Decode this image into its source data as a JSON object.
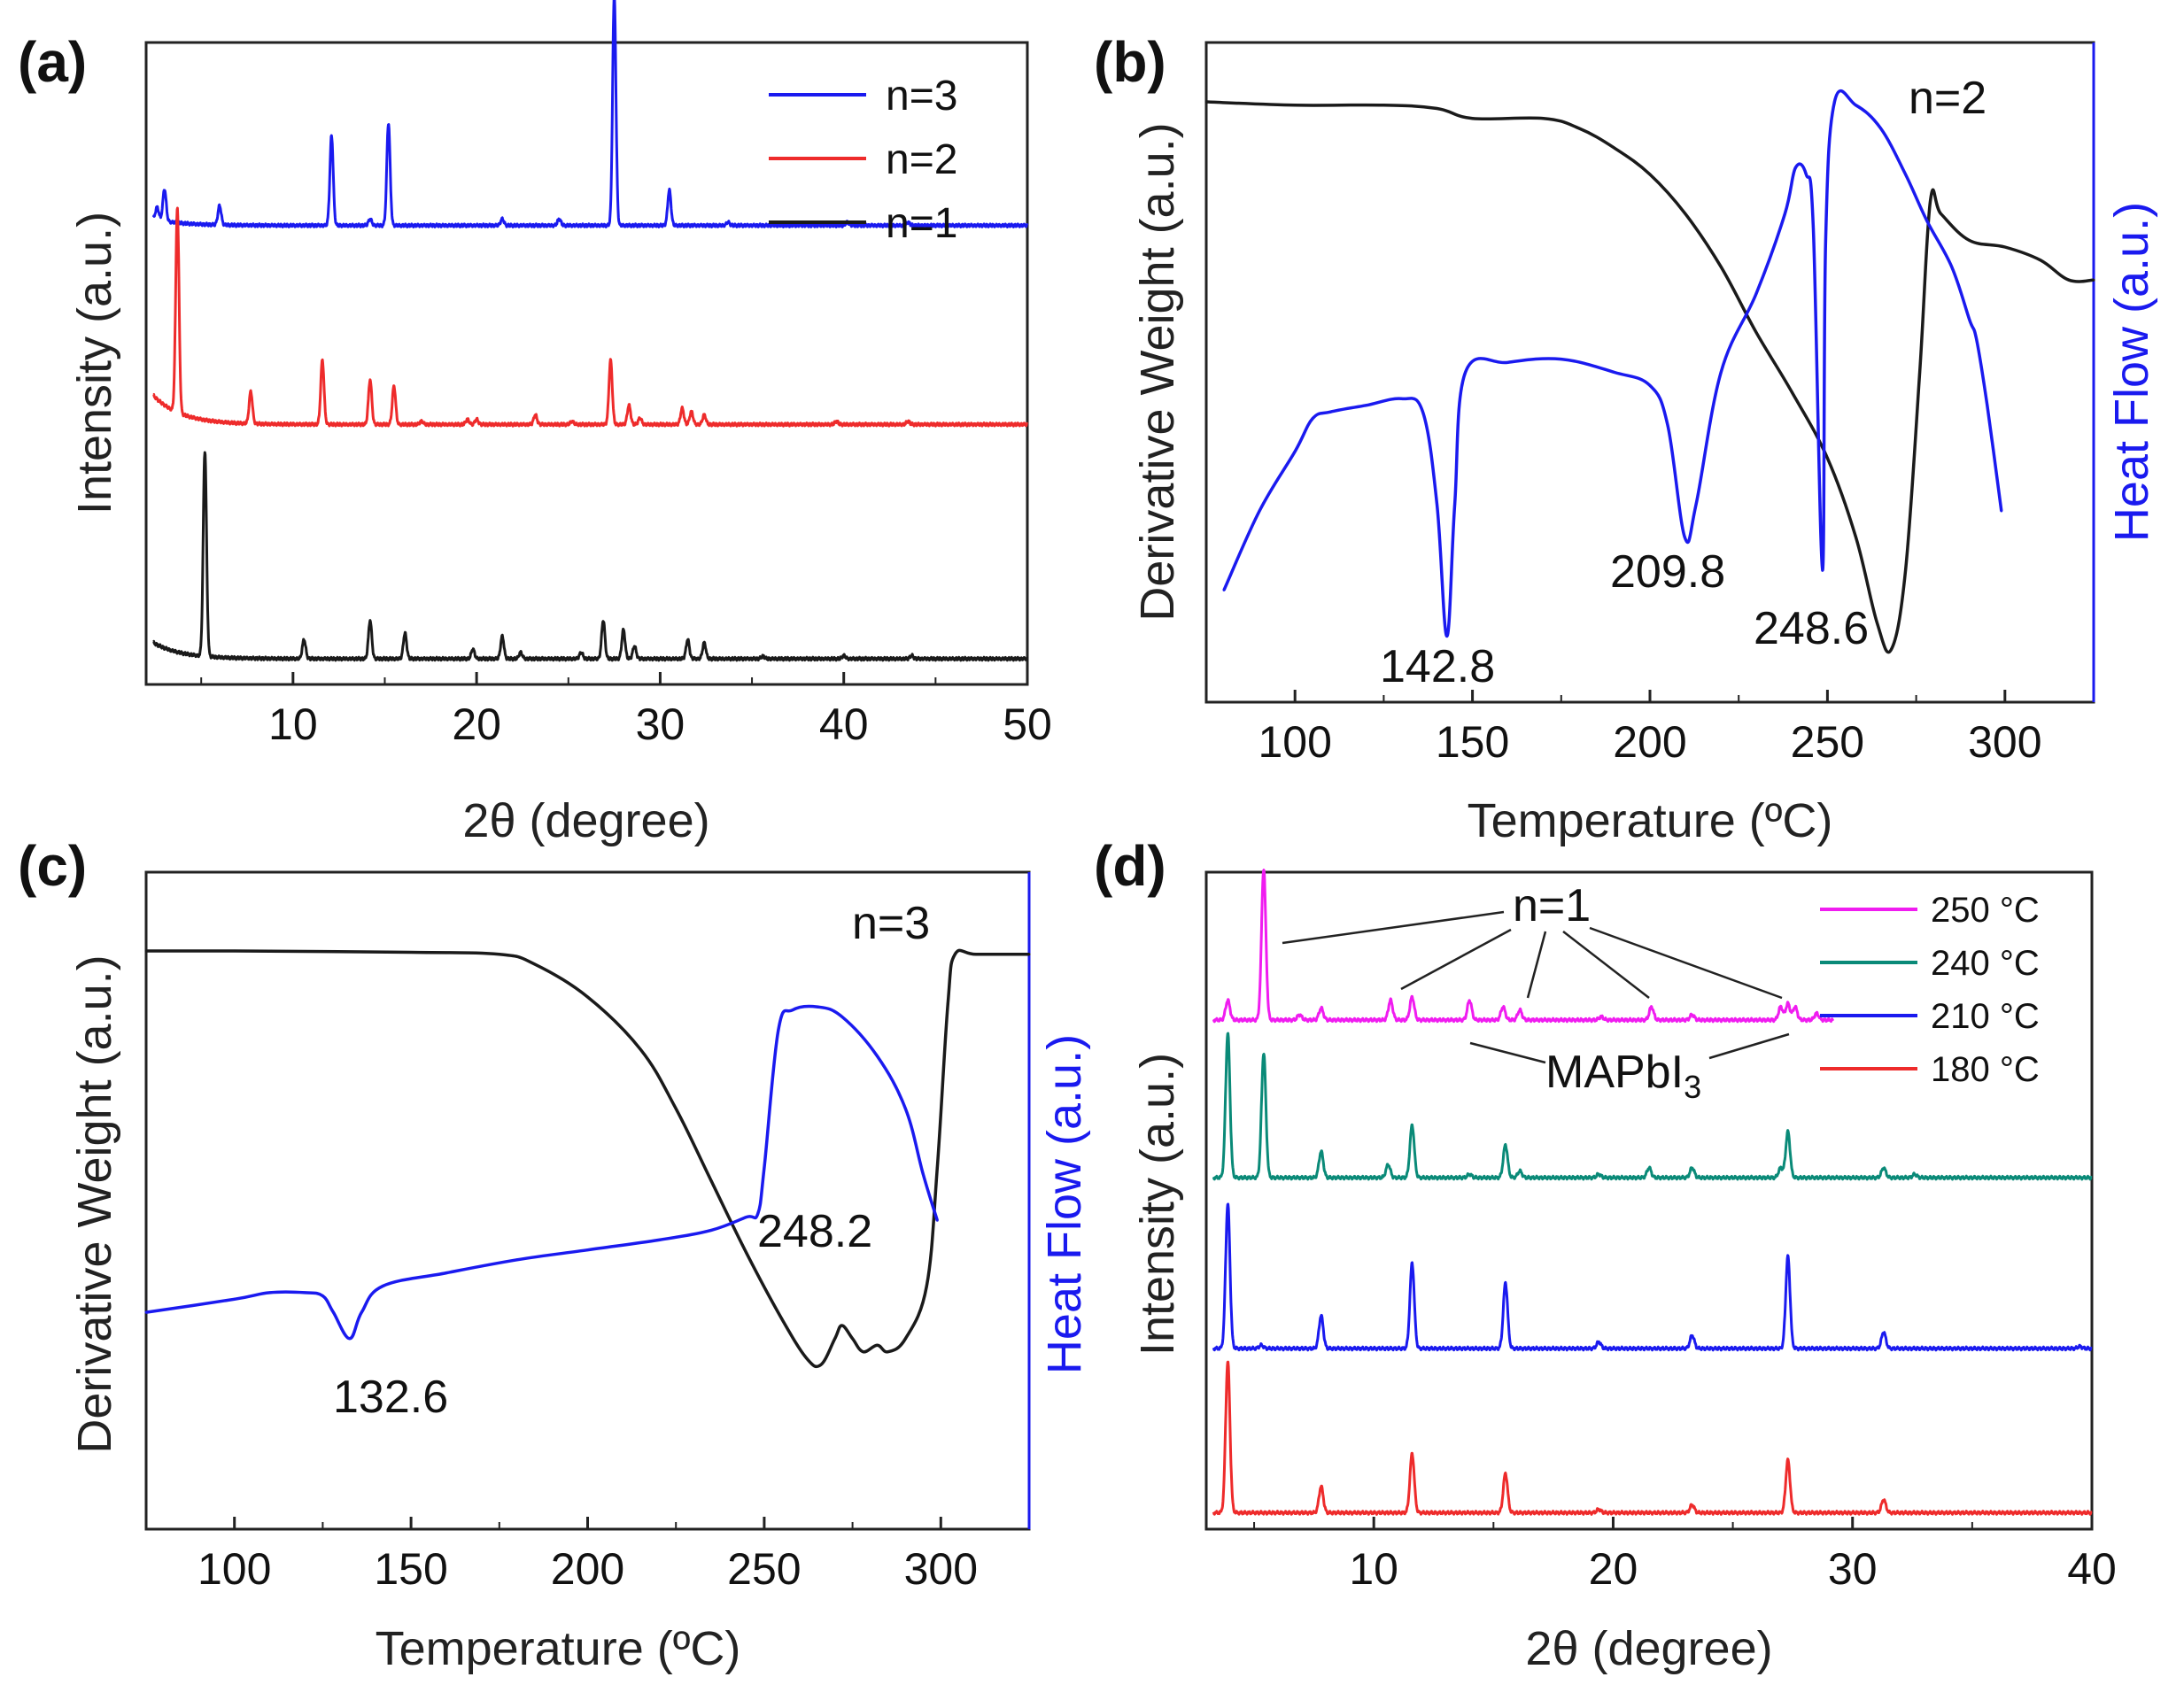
{
  "colors": {
    "black": "#1a1a1a",
    "red": "#ee2b2b",
    "blue": "#1a1aef",
    "teal": "#0a8a78",
    "magenta": "#f01cf0"
  },
  "chart_data": [
    {
      "id": "a",
      "panel_label": "(a)",
      "type": "line",
      "title": "",
      "xlabel": "2θ (degree)",
      "ylabel": "Intensity (a.u.)",
      "xlim": [
        2,
        50
      ],
      "xticks": [
        10,
        20,
        30,
        40,
        50
      ],
      "legend": [
        "n=3",
        "n=2",
        "n=1"
      ],
      "legend_position": "top-right",
      "series": [
        {
          "name": "n=3",
          "color": "blue",
          "baseline": 0.715,
          "start": 0.725,
          "peaks": [
            [
              2.6,
              0.02
            ],
            [
              3.0,
              0.05
            ],
            [
              6.0,
              0.03
            ],
            [
              12.1,
              0.14
            ],
            [
              14.2,
              0.01
            ],
            [
              15.2,
              0.16
            ],
            [
              21.4,
              0.01
            ],
            [
              24.5,
              0.01
            ],
            [
              27.5,
              0.36
            ],
            [
              30.5,
              0.055
            ],
            [
              33.7,
              0.005
            ],
            [
              40.2,
              0.005
            ],
            [
              43.5,
              0.005
            ]
          ]
        },
        {
          "name": "n=2",
          "color": "red",
          "baseline": 0.405,
          "start": 0.45,
          "peaks": [
            [
              3.7,
              0.32
            ],
            [
              7.7,
              0.05
            ],
            [
              11.6,
              0.1
            ],
            [
              14.2,
              0.07
            ],
            [
              15.5,
              0.06
            ],
            [
              17.0,
              0.005
            ],
            [
              19.5,
              0.008
            ],
            [
              20.0,
              0.008
            ],
            [
              23.2,
              0.015
            ],
            [
              25.2,
              0.005
            ],
            [
              27.3,
              0.1
            ],
            [
              28.3,
              0.03
            ],
            [
              28.9,
              0.01
            ],
            [
              31.2,
              0.025
            ],
            [
              31.7,
              0.02
            ],
            [
              32.4,
              0.015
            ],
            [
              39.6,
              0.005
            ],
            [
              43.5,
              0.005
            ]
          ]
        },
        {
          "name": "n=1",
          "color": "black",
          "baseline": 0.04,
          "start": 0.065,
          "peaks": [
            [
              5.2,
              0.32
            ],
            [
              10.6,
              0.03
            ],
            [
              14.2,
              0.06
            ],
            [
              16.1,
              0.04
            ],
            [
              19.8,
              0.015
            ],
            [
              21.4,
              0.035
            ],
            [
              22.4,
              0.01
            ],
            [
              25.7,
              0.01
            ],
            [
              26.9,
              0.06
            ],
            [
              28.0,
              0.045
            ],
            [
              28.6,
              0.02
            ],
            [
              31.5,
              0.03
            ],
            [
              32.4,
              0.025
            ],
            [
              35.6,
              0.004
            ],
            [
              40.0,
              0.005
            ],
            [
              43.7,
              0.005
            ]
          ]
        }
      ]
    },
    {
      "id": "b",
      "panel_label": "(b)",
      "type": "line",
      "title": "n=2",
      "xlabel": "Temperature (ºC)",
      "ylabel": "Derivative Weight (a.u.)",
      "y2label": "Heat Flow (a.u.)",
      "xlim": [
        75,
        325
      ],
      "xticks": [
        100,
        150,
        200,
        250,
        300
      ],
      "annotations": [
        "142.8",
        "209.8",
        "248.6"
      ],
      "series": [
        {
          "name": "Derivative Weight",
          "color": "black",
          "axis": "left",
          "points": [
            [
              75,
              0.91
            ],
            [
              100,
              0.905
            ],
            [
              125,
              0.905
            ],
            [
              140,
              0.9
            ],
            [
              150,
              0.885
            ],
            [
              170,
              0.885
            ],
            [
              180,
              0.87
            ],
            [
              190,
              0.84
            ],
            [
              200,
              0.8
            ],
            [
              210,
              0.74
            ],
            [
              220,
              0.66
            ],
            [
              230,
              0.56
            ],
            [
              240,
              0.47
            ],
            [
              250,
              0.37
            ],
            [
              258,
              0.25
            ],
            [
              264,
              0.12
            ],
            [
              268,
              0.08
            ],
            [
              272,
              0.2
            ],
            [
              276,
              0.5
            ],
            [
              279,
              0.76
            ],
            [
              282,
              0.74
            ],
            [
              290,
              0.7
            ],
            [
              300,
              0.69
            ],
            [
              310,
              0.67
            ],
            [
              318,
              0.64
            ],
            [
              325,
              0.64
            ]
          ]
        },
        {
          "name": "Heat Flow",
          "color": "blue",
          "axis": "right",
          "points": [
            [
              80,
              0.17
            ],
            [
              90,
              0.29
            ],
            [
              100,
              0.38
            ],
            [
              105,
              0.43
            ],
            [
              110,
              0.44
            ],
            [
              120,
              0.45
            ],
            [
              130,
              0.46
            ],
            [
              136,
              0.44
            ],
            [
              140,
              0.3
            ],
            [
              142.8,
              0.1
            ],
            [
              145,
              0.3
            ],
            [
              148,
              0.5
            ],
            [
              160,
              0.515
            ],
            [
              175,
              0.52
            ],
            [
              190,
              0.5
            ],
            [
              200,
              0.48
            ],
            [
              205,
              0.42
            ],
            [
              209.8,
              0.25
            ],
            [
              213,
              0.3
            ],
            [
              220,
              0.5
            ],
            [
              230,
              0.62
            ],
            [
              238,
              0.74
            ],
            [
              241,
              0.81
            ],
            [
              244,
              0.8
            ],
            [
              246,
              0.72
            ],
            [
              248.6,
              0.2
            ],
            [
              249.5,
              0.7
            ],
            [
              252,
              0.91
            ],
            [
              258,
              0.905
            ],
            [
              265,
              0.87
            ],
            [
              272,
              0.8
            ],
            [
              278,
              0.73
            ],
            [
              285,
              0.66
            ],
            [
              290,
              0.58
            ],
            [
              292,
              0.55
            ],
            [
              295,
              0.45
            ],
            [
              299,
              0.29
            ]
          ]
        }
      ]
    },
    {
      "id": "c",
      "panel_label": "(c)",
      "type": "line",
      "title": "n=3",
      "xlabel": "Temperature  (ºC)",
      "ylabel": "Derivative Weight (a.u.)",
      "y2label": "Heat Flow (a.u.)",
      "xlim": [
        75,
        325
      ],
      "xticks": [
        100,
        150,
        200,
        250,
        300
      ],
      "annotations": [
        "248.2",
        "132.6"
      ],
      "series": [
        {
          "name": "Derivative Weight",
          "color": "black",
          "axis": "left",
          "points": [
            [
              75,
              0.88
            ],
            [
              100,
              0.88
            ],
            [
              150,
              0.878
            ],
            [
              175,
              0.875
            ],
            [
              185,
              0.86
            ],
            [
              200,
              0.81
            ],
            [
              215,
              0.73
            ],
            [
              225,
              0.64
            ],
            [
              235,
              0.53
            ],
            [
              245,
              0.42
            ],
            [
              255,
              0.32
            ],
            [
              262,
              0.26
            ],
            [
              266,
              0.25
            ],
            [
              270,
              0.29
            ],
            [
              272,
              0.31
            ],
            [
              275,
              0.29
            ],
            [
              278,
              0.27
            ],
            [
              282,
              0.28
            ],
            [
              285,
              0.27
            ],
            [
              290,
              0.29
            ],
            [
              296,
              0.37
            ],
            [
              299,
              0.55
            ],
            [
              302,
              0.8
            ],
            [
              304,
              0.875
            ],
            [
              310,
              0.875
            ],
            [
              325,
              0.875
            ]
          ]
        },
        {
          "name": "Heat Flow",
          "color": "blue",
          "axis": "right",
          "points": [
            [
              75,
              0.33
            ],
            [
              100,
              0.35
            ],
            [
              110,
              0.36
            ],
            [
              120,
              0.36
            ],
            [
              125,
              0.355
            ],
            [
              128,
              0.33
            ],
            [
              132.6,
              0.29
            ],
            [
              136,
              0.33
            ],
            [
              142,
              0.37
            ],
            [
              160,
              0.39
            ],
            [
              180,
              0.41
            ],
            [
              200,
              0.425
            ],
            [
              220,
              0.44
            ],
            [
              235,
              0.455
            ],
            [
              245,
              0.475
            ],
            [
              248.2,
              0.48
            ],
            [
              250,
              0.55
            ],
            [
              254,
              0.76
            ],
            [
              258,
              0.79
            ],
            [
              265,
              0.795
            ],
            [
              272,
              0.78
            ],
            [
              282,
              0.72
            ],
            [
              290,
              0.64
            ],
            [
              295,
              0.54
            ],
            [
              299,
              0.47
            ]
          ]
        }
      ]
    },
    {
      "id": "d",
      "panel_label": "(d)",
      "type": "line",
      "title": "",
      "xlabel": "2θ (degree)",
      "ylabel": "Intensity (a.u.)",
      "xlim": [
        3,
        40
      ],
      "xticks": [
        10,
        20,
        30,
        40
      ],
      "legend": [
        "250 °C",
        "240 °C",
        "210 °C",
        "180 °C"
      ],
      "legend_position": "top-right",
      "annotations": [
        "n=1",
        "MAPbI3"
      ],
      "series": [
        {
          "name": "250 °C",
          "color": "magenta",
          "baseline": 0.775,
          "xmax": 29.2,
          "peaks": [
            [
              3.9,
              0.03
            ],
            [
              5.4,
              0.23
            ],
            [
              6.9,
              0.008
            ],
            [
              7.8,
              0.018
            ],
            [
              10.7,
              0.03
            ],
            [
              11.6,
              0.035
            ],
            [
              14.0,
              0.03
            ],
            [
              15.4,
              0.02
            ],
            [
              16.1,
              0.015
            ],
            [
              19.5,
              0.005
            ],
            [
              21.6,
              0.02
            ],
            [
              23.3,
              0.008
            ],
            [
              27.0,
              0.02
            ],
            [
              27.3,
              0.025
            ],
            [
              27.6,
              0.02
            ],
            [
              28.5,
              0.01
            ]
          ]
        },
        {
          "name": "240 °C",
          "color": "teal",
          "baseline": 0.535,
          "peaks": [
            [
              3.9,
              0.22
            ],
            [
              5.4,
              0.19
            ],
            [
              7.8,
              0.04
            ],
            [
              10.6,
              0.02
            ],
            [
              11.6,
              0.08
            ],
            [
              14.0,
              0.005
            ],
            [
              15.5,
              0.05
            ],
            [
              16.1,
              0.01
            ],
            [
              19.4,
              0.005
            ],
            [
              21.5,
              0.015
            ],
            [
              23.3,
              0.015
            ],
            [
              27.0,
              0.015
            ],
            [
              27.3,
              0.07
            ],
            [
              31.3,
              0.015
            ],
            [
              32.6,
              0.005
            ]
          ]
        },
        {
          "name": "210 °C",
          "color": "blue",
          "baseline": 0.275,
          "peaks": [
            [
              3.9,
              0.22
            ],
            [
              5.3,
              0.005
            ],
            [
              7.8,
              0.05
            ],
            [
              11.6,
              0.13
            ],
            [
              15.5,
              0.1
            ],
            [
              19.4,
              0.01
            ],
            [
              23.3,
              0.02
            ],
            [
              27.3,
              0.14
            ],
            [
              31.3,
              0.025
            ],
            [
              39.5,
              0.003
            ]
          ]
        },
        {
          "name": "180 °C",
          "color": "red",
          "baseline": 0.025,
          "peaks": [
            [
              3.9,
              0.23
            ],
            [
              7.8,
              0.04
            ],
            [
              11.6,
              0.09
            ],
            [
              15.5,
              0.06
            ],
            [
              19.4,
              0.005
            ],
            [
              23.3,
              0.012
            ],
            [
              27.3,
              0.08
            ],
            [
              31.3,
              0.02
            ]
          ]
        }
      ]
    }
  ]
}
